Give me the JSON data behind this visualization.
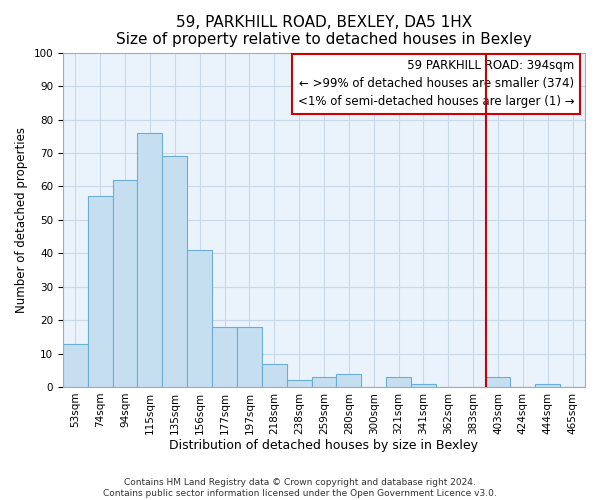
{
  "title": "59, PARKHILL ROAD, BEXLEY, DA5 1HX",
  "subtitle": "Size of property relative to detached houses in Bexley",
  "xlabel": "Distribution of detached houses by size in Bexley",
  "ylabel": "Number of detached properties",
  "bar_labels": [
    "53sqm",
    "74sqm",
    "94sqm",
    "115sqm",
    "135sqm",
    "156sqm",
    "177sqm",
    "197sqm",
    "218sqm",
    "238sqm",
    "259sqm",
    "280sqm",
    "300sqm",
    "321sqm",
    "341sqm",
    "362sqm",
    "383sqm",
    "403sqm",
    "424sqm",
    "444sqm",
    "465sqm"
  ],
  "bar_values": [
    13,
    57,
    62,
    76,
    69,
    41,
    18,
    18,
    7,
    2,
    3,
    4,
    0,
    3,
    1,
    0,
    0,
    3,
    0,
    1,
    0
  ],
  "bar_color": "#c6dff0",
  "bar_edgecolor": "#6aaed6",
  "vline_index": 17,
  "vline_color": "#cc0000",
  "ylim": [
    0,
    100
  ],
  "yticks": [
    0,
    10,
    20,
    30,
    40,
    50,
    60,
    70,
    80,
    90,
    100
  ],
  "legend_title": "59 PARKHILL ROAD: 394sqm",
  "legend_line1": "← >99% of detached houses are smaller (374)",
  "legend_line2": "<1% of semi-detached houses are larger (1) →",
  "legend_box_color": "#cc0000",
  "grid_color": "#c8d8e8",
  "bg_color": "#e8f0f8",
  "plot_bg_color": "#eaf2fb",
  "footnote1": "Contains HM Land Registry data © Crown copyright and database right 2024.",
  "footnote2": "Contains public sector information licensed under the Open Government Licence v3.0.",
  "title_fontsize": 11,
  "subtitle_fontsize": 9.5,
  "xlabel_fontsize": 9,
  "ylabel_fontsize": 8.5,
  "tick_fontsize": 7.5,
  "footnote_fontsize": 6.5,
  "legend_fontsize": 8.5
}
